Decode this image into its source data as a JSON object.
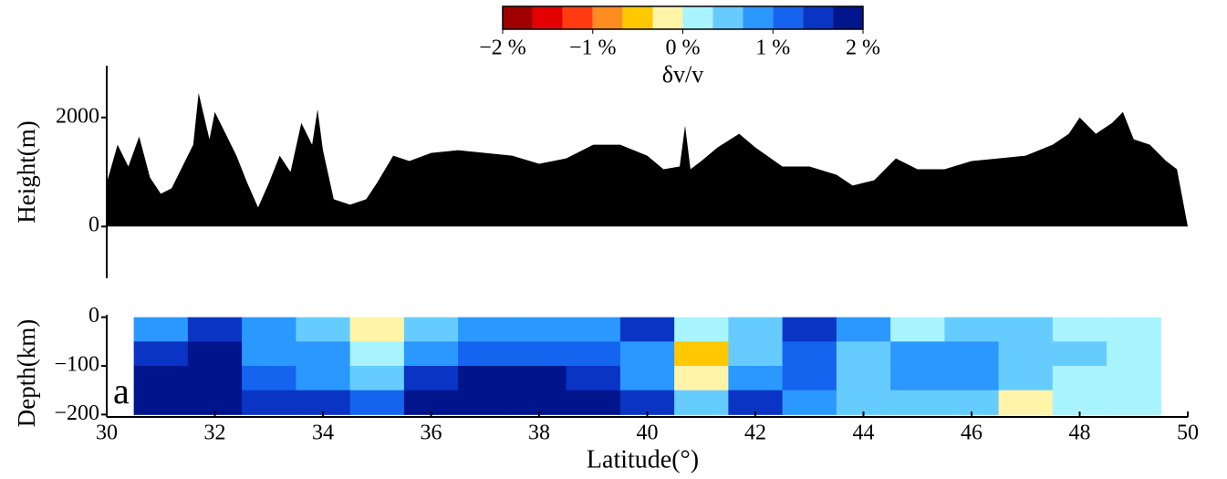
{
  "chart_data": [
    {
      "type": "colorbar",
      "label": "δv/v",
      "levels": [
        -2,
        -1.6667,
        -1.3333,
        -1,
        -0.6667,
        -0.3333,
        0,
        0.3333,
        0.6667,
        1,
        1.3333,
        1.6667,
        2
      ],
      "colors": [
        "#a00000",
        "#e40000",
        "#ff3c10",
        "#ff8c1e",
        "#ffc800",
        "#fff4a8",
        "#a8f4ff",
        "#66ccff",
        "#2b98ff",
        "#1464f0",
        "#0a34c4",
        "#00148c"
      ],
      "xlim": [
        -2,
        2
      ],
      "xticks": [
        {
          "value": -2,
          "label": "−2 %"
        },
        {
          "value": -1,
          "label": "−1 %"
        },
        {
          "value": 0,
          "label": "0 %"
        },
        {
          "value": 1,
          "label": "1 %"
        },
        {
          "value": 2,
          "label": "2 %"
        }
      ]
    },
    {
      "type": "area",
      "ylabel": "Height(m)",
      "color": "#000000",
      "xlim": [
        30,
        50
      ],
      "ylim": [
        -950,
        2950
      ],
      "yticks": [
        0,
        2000
      ],
      "x": [
        30.0,
        30.2,
        30.4,
        30.6,
        30.8,
        31.0,
        31.2,
        31.4,
        31.6,
        31.7,
        31.9,
        32.0,
        32.2,
        32.4,
        32.6,
        32.8,
        33.0,
        33.2,
        33.4,
        33.6,
        33.8,
        33.9,
        34.0,
        34.2,
        34.5,
        34.8,
        35.0,
        35.3,
        35.6,
        36.0,
        36.5,
        37.0,
        37.5,
        38.0,
        38.5,
        39.0,
        39.5,
        40.0,
        40.3,
        40.6,
        40.7,
        40.8,
        41.0,
        41.3,
        41.7,
        42.0,
        42.5,
        43.0,
        43.5,
        43.8,
        44.2,
        44.6,
        45.0,
        45.5,
        46.0,
        46.5,
        47.0,
        47.5,
        47.8,
        48.0,
        48.3,
        48.6,
        48.8,
        49.0,
        49.3,
        49.6,
        49.8,
        50.0
      ],
      "y": [
        800,
        1500,
        1100,
        1650,
        900,
        600,
        700,
        1100,
        1500,
        2450,
        1600,
        2100,
        1700,
        1300,
        800,
        350,
        800,
        1300,
        1000,
        1900,
        1500,
        2150,
        1400,
        500,
        400,
        500,
        800,
        1300,
        1200,
        1350,
        1400,
        1350,
        1300,
        1150,
        1250,
        1500,
        1500,
        1300,
        1050,
        1100,
        1850,
        1050,
        1200,
        1450,
        1700,
        1450,
        1100,
        1100,
        950,
        750,
        850,
        1250,
        1050,
        1050,
        1200,
        1250,
        1300,
        1500,
        1700,
        2000,
        1700,
        1900,
        2100,
        1600,
        1500,
        1200,
        1050,
        0
      ]
    },
    {
      "type": "heatmap",
      "ylabel": "Depth(km)",
      "xlabel": "Latitude(°)",
      "annotation": "a",
      "xlim": [
        30,
        50
      ],
      "ylim": [
        -205,
        5
      ],
      "xticks": [
        30,
        32,
        34,
        36,
        38,
        40,
        42,
        44,
        46,
        48,
        50
      ],
      "yticks": [
        0,
        {
          "value": -100,
          "label": "−100"
        },
        {
          "value": -200,
          "label": "−200"
        }
      ],
      "x": [
        31,
        32,
        33,
        34,
        35,
        36,
        37,
        38,
        39,
        40,
        41,
        42,
        43,
        44,
        45,
        46,
        47,
        48,
        49
      ],
      "y": [
        -25,
        -75,
        -125,
        -175
      ],
      "values": [
        [
          1.0,
          1.5,
          1.7,
          1.8
        ],
        [
          1.4,
          1.9,
          1.9,
          1.9
        ],
        [
          0.8,
          1.0,
          1.3,
          1.5
        ],
        [
          0.5,
          0.8,
          0.8,
          1.5
        ],
        [
          -0.2,
          0.3,
          0.6,
          1.2
        ],
        [
          0.6,
          0.9,
          1.5,
          1.9
        ],
        [
          0.8,
          1.2,
          1.9,
          1.9
        ],
        [
          0.9,
          1.1,
          1.9,
          1.9
        ],
        [
          1.0,
          1.2,
          1.4,
          1.8
        ],
        [
          1.5,
          0.8,
          1.0,
          1.4
        ],
        [
          0.3,
          -0.5,
          -0.1,
          0.5
        ],
        [
          0.5,
          0.6,
          1.0,
          1.5
        ],
        [
          1.4,
          1.2,
          1.1,
          0.8
        ],
        [
          1.0,
          0.6,
          0.6,
          0.5
        ],
        [
          0.3,
          0.7,
          0.9,
          0.6
        ],
        [
          0.5,
          0.9,
          0.9,
          0.4
        ],
        [
          0.6,
          0.5,
          0.4,
          -0.3
        ],
        [
          0.3,
          0.4,
          0.3,
          0.2
        ],
        [
          0.2,
          0.3,
          0.2,
          0.2
        ]
      ]
    }
  ]
}
